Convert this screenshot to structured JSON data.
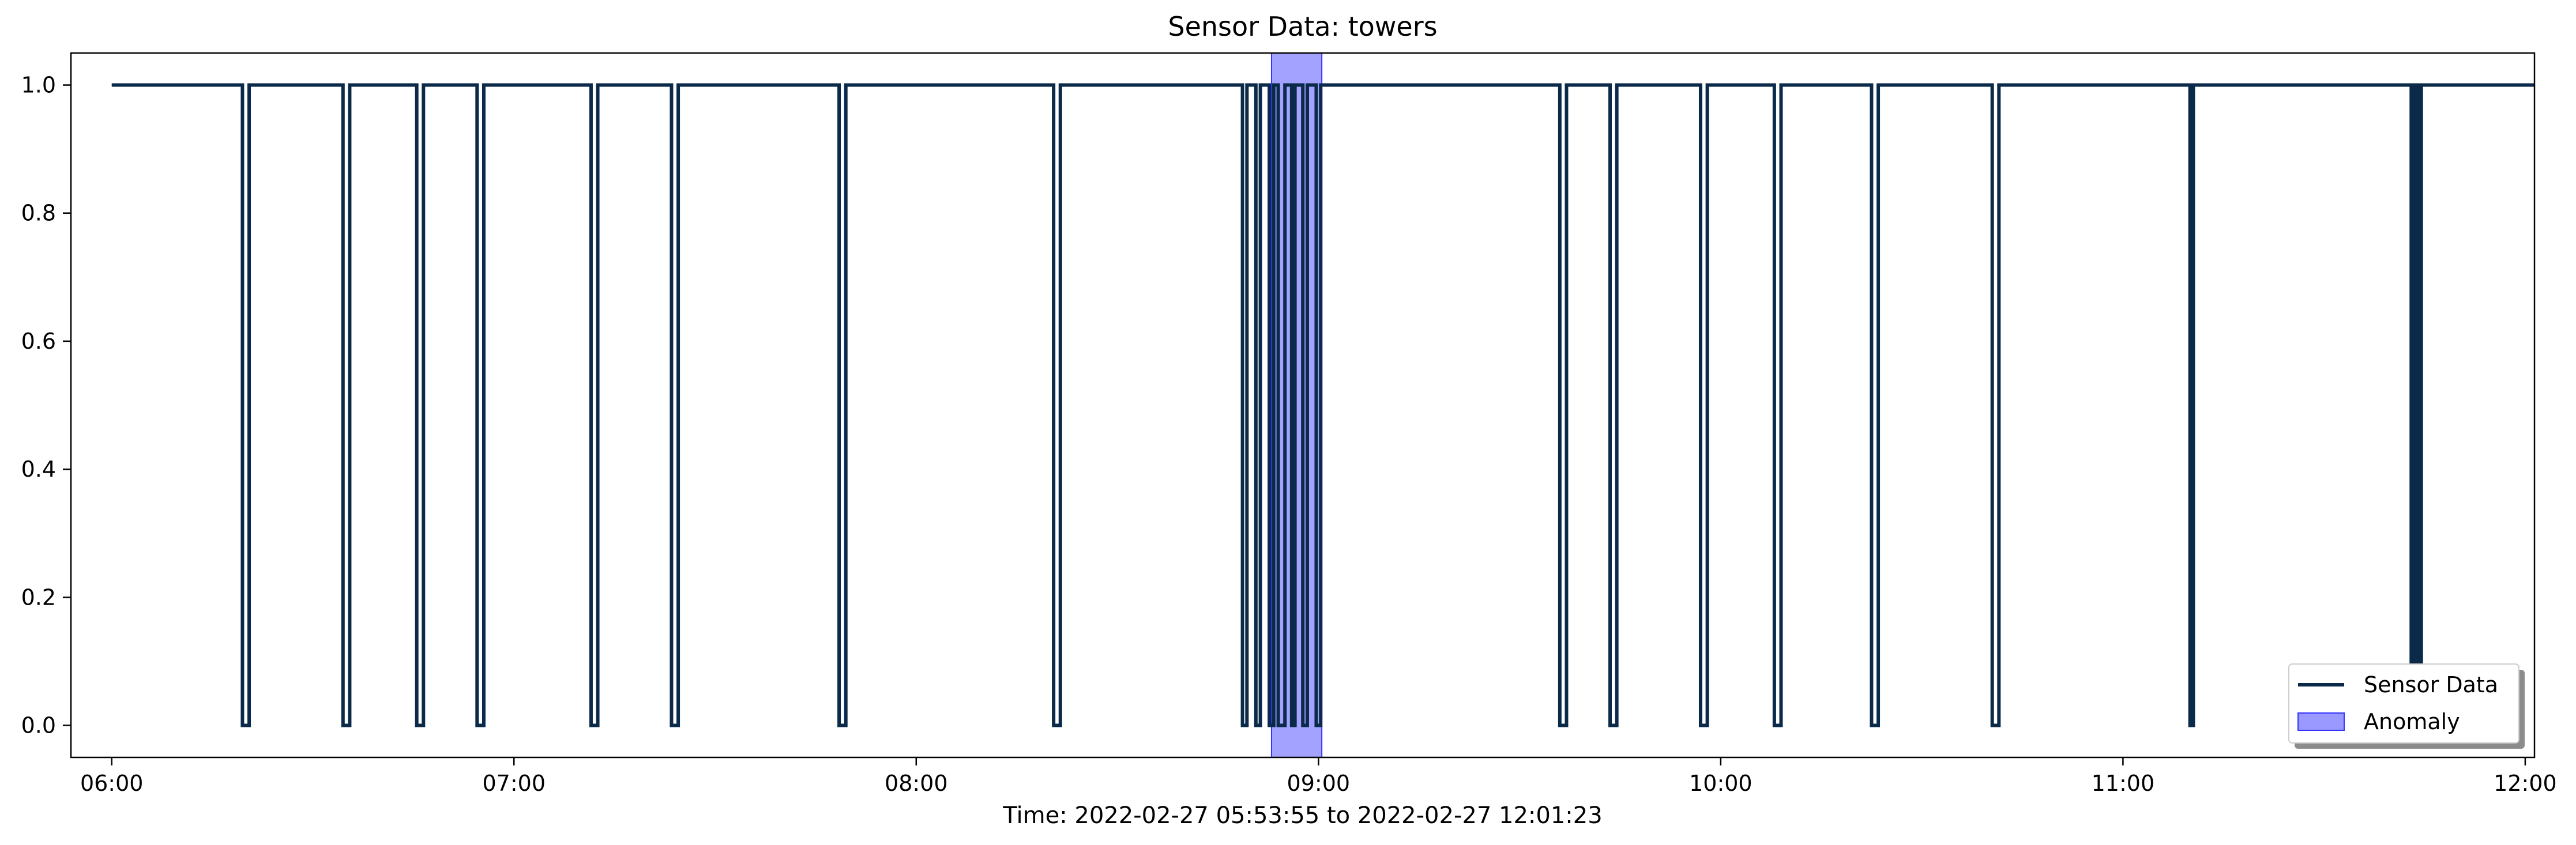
{
  "chart_data": {
    "type": "line",
    "title": "Sensor Data: towers",
    "xlabel": "Time: 2022-02-27 05:53:55 to 2022-02-27 12:01:23",
    "ylabel": "",
    "xlim": [
      "05:53:55",
      "12:01:23"
    ],
    "ylim": [
      -0.05,
      1.05
    ],
    "x_ticks": [
      "06:00",
      "07:00",
      "08:00",
      "09:00",
      "10:00",
      "11:00",
      "12:00"
    ],
    "y_ticks": [
      "0.0",
      "0.2",
      "0.4",
      "0.6",
      "0.8",
      "1.0"
    ],
    "grid": false,
    "legend_position": "lower-right",
    "colors": {
      "line": "#0b2a4a",
      "anomaly_fill": "#9999ff",
      "anomaly_edge": "#3333ff"
    },
    "series": [
      {
        "name": "Sensor Data",
        "style": "step",
        "baseline": 1.0,
        "start": "06:00:00",
        "end": "12:01:23",
        "drops_to_zero": [
          [
            "06:19:30",
            "06:20:30"
          ],
          [
            "06:34:30",
            "06:35:30"
          ],
          [
            "06:45:30",
            "06:46:30"
          ],
          [
            "06:54:30",
            "06:55:30"
          ],
          [
            "07:11:30",
            "07:12:30"
          ],
          [
            "07:23:30",
            "07:24:30"
          ],
          [
            "07:48:30",
            "07:49:30"
          ],
          [
            "08:20:30",
            "08:21:30"
          ],
          [
            "08:48:40",
            "08:49:20"
          ],
          [
            "08:50:40",
            "08:51:20"
          ],
          [
            "08:52:40",
            "08:53:20"
          ],
          [
            "08:54:00",
            "08:55:00"
          ],
          [
            "08:56:00",
            "08:56:30"
          ],
          [
            "08:57:40",
            "08:58:20"
          ],
          [
            "08:59:40",
            "09:00:20"
          ],
          [
            "09:36:00",
            "09:37:00"
          ],
          [
            "09:43:30",
            "09:44:30"
          ],
          [
            "09:57:00",
            "09:58:00"
          ],
          [
            "10:08:00",
            "10:09:00"
          ],
          [
            "10:22:30",
            "10:23:30"
          ],
          [
            "10:40:30",
            "10:41:30"
          ],
          [
            "11:10:00",
            "11:10:30"
          ],
          [
            "11:43:00",
            "11:43:30"
          ],
          [
            "11:44:00",
            "11:44:30"
          ]
        ]
      }
    ],
    "anomaly_regions": [
      {
        "name": "Anomaly",
        "start": "08:53:00",
        "end": "09:00:30"
      }
    ]
  }
}
